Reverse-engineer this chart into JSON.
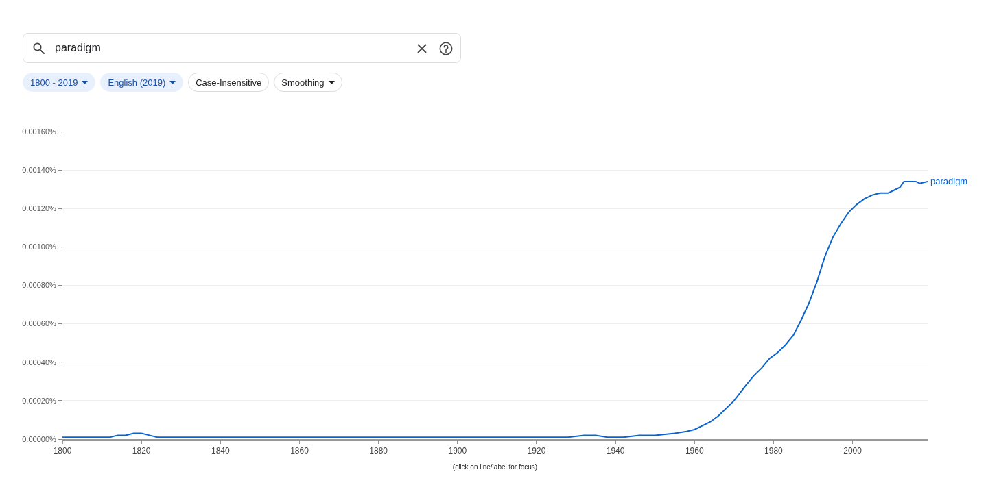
{
  "chart_data": {
    "type": "line",
    "xlabel": "(click on line/label for focus)",
    "annotations": [
      "paradigm",
      "1800 - 2019",
      "English (2019)",
      "Case-Insensitive",
      "Smoothing"
    ],
    "x": [
      1800,
      1805,
      1810,
      1812,
      1814,
      1816,
      1818,
      1820,
      1822,
      1824,
      1830,
      1840,
      1850,
      1860,
      1870,
      1880,
      1890,
      1900,
      1910,
      1920,
      1928,
      1932,
      1935,
      1938,
      1942,
      1946,
      1950,
      1955,
      1958,
      1960,
      1962,
      1964,
      1966,
      1968,
      1970,
      1973,
      1975,
      1977,
      1979,
      1981,
      1983,
      1985,
      1987,
      1989,
      1991,
      1993,
      1995,
      1997,
      1999,
      2001,
      2003,
      2005,
      2007,
      2009,
      2010,
      2012,
      2013,
      2015,
      2016,
      2017,
      2019
    ],
    "series": [
      {
        "name": "paradigm",
        "color": "#0b63ce",
        "values": [
          1e-05,
          1e-05,
          1e-05,
          1e-05,
          2e-05,
          2e-05,
          3e-05,
          3e-05,
          2e-05,
          1e-05,
          1e-05,
          1e-05,
          1e-05,
          1e-05,
          1e-05,
          1e-05,
          1e-05,
          1e-05,
          1e-05,
          1e-05,
          1e-05,
          2e-05,
          2e-05,
          1e-05,
          1e-05,
          2e-05,
          2e-05,
          3e-05,
          4e-05,
          5e-05,
          7e-05,
          9e-05,
          0.00012,
          0.00016,
          0.0002,
          0.00028,
          0.00033,
          0.00037,
          0.00042,
          0.00045,
          0.00049,
          0.00054,
          0.00062,
          0.00071,
          0.00082,
          0.00095,
          0.00105,
          0.00112,
          0.00118,
          0.00122,
          0.00125,
          0.00127,
          0.00128,
          0.00128,
          0.00129,
          0.00131,
          0.00134,
          0.00134,
          0.00134,
          0.00133,
          0.00134
        ]
      }
    ],
    "xlim": [
      1800,
      2019
    ],
    "xticks": [
      1800,
      1820,
      1840,
      1860,
      1880,
      1900,
      1920,
      1940,
      1960,
      1980,
      2000
    ],
    "ylim": [
      0,
      0.0016
    ],
    "yticks": [
      {
        "value": 0,
        "label": "0.00000%"
      },
      {
        "value": 0.0002,
        "label": "0.00020%"
      },
      {
        "value": 0.0004,
        "label": "0.00040%"
      },
      {
        "value": 0.0006,
        "label": "0.00060%"
      },
      {
        "value": 0.0008,
        "label": "0.00080%"
      },
      {
        "value": 0.001,
        "label": "0.00100%"
      },
      {
        "value": 0.0012,
        "label": "0.00120%"
      },
      {
        "value": 0.0014,
        "label": "0.00140%"
      },
      {
        "value": 0.0016,
        "label": "0.00160%"
      }
    ],
    "grid": "y"
  }
}
